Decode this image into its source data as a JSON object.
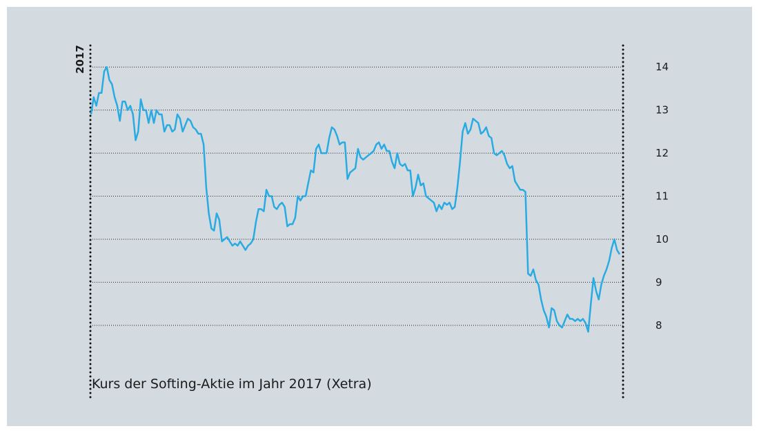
{
  "chart_data": {
    "type": "line",
    "title": "Kurs der Softing-Aktie im Jahr 2017 (Xetra)",
    "year_label": "2017",
    "color": "#29abe2",
    "ylim": [
      6.3,
      14.5
    ],
    "yticks": [
      8,
      9,
      10,
      11,
      12,
      13,
      14
    ],
    "grid": true,
    "values": [
      12.9,
      13.3,
      13.1,
      13.4,
      13.4,
      13.9,
      14.0,
      13.7,
      13.6,
      13.3,
      13.1,
      12.75,
      13.2,
      13.2,
      13.0,
      13.1,
      12.9,
      12.3,
      12.5,
      13.25,
      13.0,
      13.0,
      12.7,
      13.0,
      12.7,
      13.0,
      12.9,
      12.9,
      12.5,
      12.65,
      12.65,
      12.5,
      12.55,
      12.9,
      12.8,
      12.5,
      12.65,
      12.8,
      12.75,
      12.6,
      12.55,
      12.45,
      12.45,
      12.2,
      11.2,
      10.6,
      10.25,
      10.2,
      10.6,
      10.45,
      9.95,
      10.0,
      10.05,
      9.95,
      9.85,
      9.9,
      9.85,
      9.95,
      9.85,
      9.75,
      9.85,
      9.9,
      10.0,
      10.4,
      10.7,
      10.7,
      10.65,
      11.15,
      11.0,
      11.0,
      10.75,
      10.7,
      10.8,
      10.85,
      10.75,
      10.3,
      10.35,
      10.35,
      10.5,
      11.0,
      10.9,
      11.0,
      11.0,
      11.3,
      11.6,
      11.55,
      12.1,
      12.2,
      12.0,
      12.0,
      12.0,
      12.35,
      12.6,
      12.55,
      12.4,
      12.2,
      12.25,
      12.25,
      11.4,
      11.55,
      11.6,
      11.65,
      12.1,
      11.9,
      11.85,
      11.9,
      11.95,
      12.0,
      12.05,
      12.2,
      12.25,
      12.1,
      12.2,
      12.05,
      12.05,
      11.8,
      11.65,
      12.0,
      11.75,
      11.7,
      11.75,
      11.6,
      11.6,
      11.0,
      11.2,
      11.5,
      11.25,
      11.3,
      11.0,
      10.95,
      10.9,
      10.85,
      10.65,
      10.8,
      10.7,
      10.85,
      10.8,
      10.85,
      10.7,
      10.75,
      11.2,
      11.8,
      12.5,
      12.7,
      12.45,
      12.55,
      12.8,
      12.75,
      12.7,
      12.45,
      12.5,
      12.6,
      12.4,
      12.35,
      12.0,
      11.95,
      12.0,
      12.05,
      11.95,
      11.75,
      11.65,
      11.7,
      11.35,
      11.25,
      11.15,
      11.15,
      11.1,
      9.2,
      9.15,
      9.3,
      9.05,
      8.95,
      8.6,
      8.35,
      8.2,
      7.95,
      8.4,
      8.35,
      8.1,
      8.0,
      7.95,
      8.1,
      8.25,
      8.15,
      8.15,
      8.1,
      8.15,
      8.1,
      8.15,
      8.05,
      7.85,
      8.5,
      9.1,
      8.8,
      8.6,
      8.95,
      9.15,
      9.3,
      9.5,
      9.8,
      10.0,
      9.75,
      9.65
    ]
  }
}
